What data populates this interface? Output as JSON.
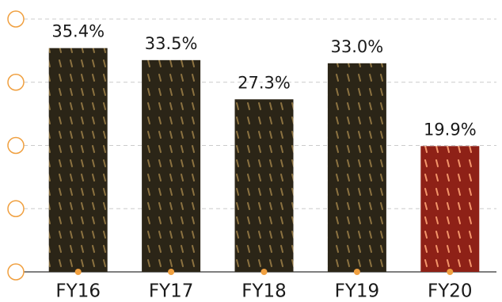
{
  "chart_data": {
    "type": "bar",
    "categories": [
      "FY16",
      "FY17",
      "FY18",
      "FY19",
      "FY20"
    ],
    "values": [
      35.4,
      33.5,
      27.3,
      33.0,
      19.9
    ],
    "value_labels": [
      "35.4%",
      "33.5%",
      "27.3%",
      "33.0%",
      "19.9%"
    ],
    "colors": [
      "#2b2517",
      "#2b2517",
      "#2b2517",
      "#2b2517",
      "#8e2117"
    ],
    "ylim": [
      0,
      40
    ],
    "yticks": [
      0,
      10,
      20,
      30,
      40
    ],
    "grid": true
  }
}
